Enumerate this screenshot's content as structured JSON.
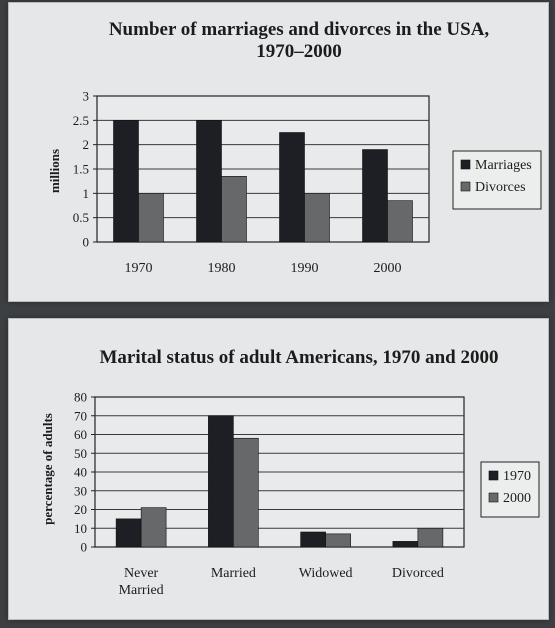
{
  "chart_data": [
    {
      "type": "bar",
      "title_lines": [
        "Number of marriages and divorces in the USA,",
        "1970–2000"
      ],
      "ylabel": "millions",
      "xlabel": "",
      "categories": [
        "1970",
        "1980",
        "1990",
        "2000"
      ],
      "yticks": [
        "0",
        "0.5",
        "1",
        "1.5",
        "2",
        "2.5",
        "3"
      ],
      "ylim": [
        0,
        3
      ],
      "series": [
        {
          "name": "Marriages",
          "values": [
            2.5,
            2.5,
            2.25,
            1.9
          ],
          "color": "#1e1f24"
        },
        {
          "name": "Divorces",
          "values": [
            1.0,
            1.35,
            1.0,
            0.85
          ],
          "color": "#66686a"
        }
      ],
      "legend": "right",
      "grid": true
    },
    {
      "type": "bar",
      "title_lines": [
        "Marital status of adult Americans, 1970 and 2000"
      ],
      "ylabel": "percentage of adults",
      "xlabel": "",
      "categories": [
        [
          "Never",
          "Married"
        ],
        [
          "Married"
        ],
        [
          "Widowed"
        ],
        [
          "Divorced"
        ]
      ],
      "yticks": [
        "0",
        "10",
        "20",
        "30",
        "40",
        "50",
        "60",
        "70",
        "80"
      ],
      "ylim": [
        0,
        80
      ],
      "series": [
        {
          "name": "1970",
          "values": [
            15,
            70,
            8,
            3
          ],
          "color": "#1e1f24"
        },
        {
          "name": "2000",
          "values": [
            21,
            58,
            7,
            10
          ],
          "color": "#66686a"
        }
      ],
      "legend": "right",
      "grid": true
    }
  ]
}
